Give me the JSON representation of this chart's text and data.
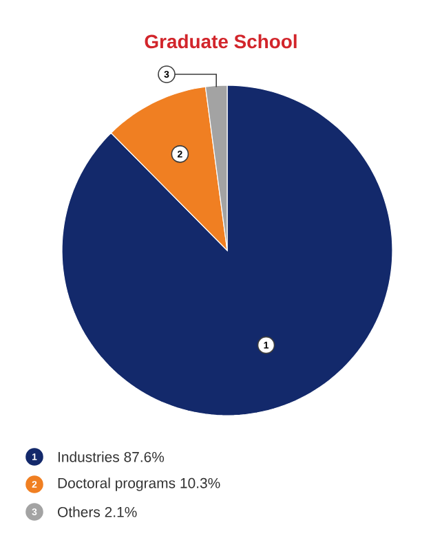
{
  "chart_data": {
    "type": "pie",
    "title": "Graduate School",
    "categories": [
      "Industries",
      "Doctoral programs",
      "Others"
    ],
    "values": [
      87.6,
      10.3,
      2.1
    ],
    "colors": [
      "#13296b",
      "#f07f22",
      "#a3a3a3"
    ],
    "value_labels": [
      "87.6%",
      "10.3%",
      "2.1%"
    ],
    "annotations": [
      "1",
      "2",
      "3"
    ],
    "legend": "bottom"
  }
}
